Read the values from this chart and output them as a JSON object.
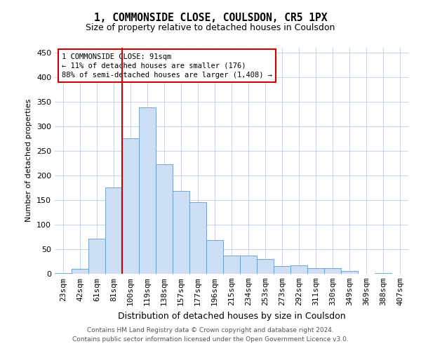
{
  "title": "1, COMMONSIDE CLOSE, COULSDON, CR5 1PX",
  "subtitle": "Size of property relative to detached houses in Coulsdon",
  "xlabel": "Distribution of detached houses by size in Coulsdon",
  "ylabel": "Number of detached properties",
  "bar_labels": [
    "23sqm",
    "42sqm",
    "61sqm",
    "81sqm",
    "100sqm",
    "119sqm",
    "138sqm",
    "157sqm",
    "177sqm",
    "196sqm",
    "215sqm",
    "234sqm",
    "253sqm",
    "273sqm",
    "292sqm",
    "311sqm",
    "330sqm",
    "349sqm",
    "369sqm",
    "388sqm",
    "407sqm"
  ],
  "bar_values": [
    2,
    10,
    72,
    175,
    275,
    338,
    222,
    168,
    145,
    68,
    37,
    37,
    30,
    15,
    17,
    12,
    12,
    6,
    0,
    1,
    0
  ],
  "bar_color": "#ccdff5",
  "bar_edge_color": "#6699cc",
  "red_line_x": 3.5,
  "annotation_line1": "1 COMMONSIDE CLOSE: 91sqm",
  "annotation_line2": "← 11% of detached houses are smaller (176)",
  "annotation_line3": "88% of semi-detached houses are larger (1,408) →",
  "annotation_box_color": "#ffffff",
  "annotation_box_edge": "#cc0000",
  "vline_color": "#cc0000",
  "ylim": [
    0,
    460
  ],
  "yticks": [
    0,
    50,
    100,
    150,
    200,
    250,
    300,
    350,
    400,
    450
  ],
  "footer1": "Contains HM Land Registry data © Crown copyright and database right 2024.",
  "footer2": "Contains public sector information licensed under the Open Government Licence v3.0.",
  "bg_color": "#ffffff",
  "grid_color": "#c8d4e8",
  "title_fontsize": 10.5,
  "subtitle_fontsize": 9,
  "ylabel_fontsize": 8,
  "xlabel_fontsize": 9,
  "tick_fontsize": 8,
  "annot_fontsize": 7.5,
  "footer_fontsize": 6.5
}
